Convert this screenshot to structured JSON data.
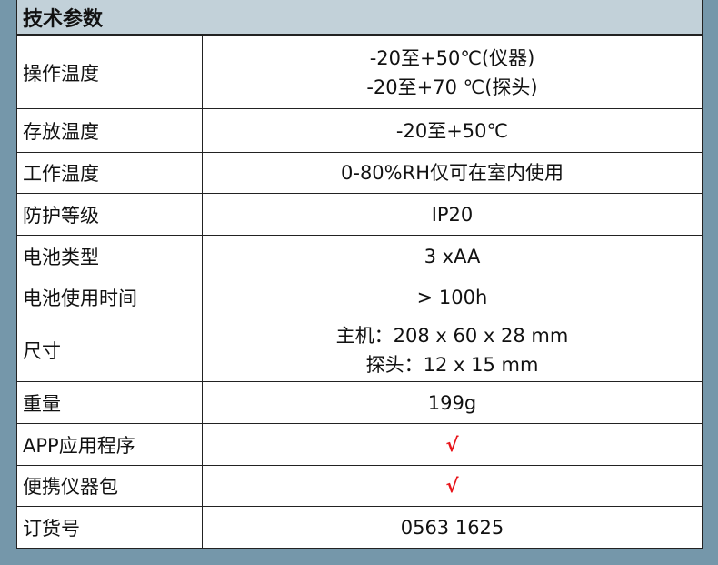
{
  "title": "技术参数",
  "check_color": "#e8141a",
  "rows": [
    {
      "label": "操作温度",
      "lines": [
        "-20至+50℃(仪器)",
        "-20至+70 ℃(探头)"
      ],
      "h": 80
    },
    {
      "label": "存放温度",
      "lines": [
        "-20至+50℃"
      ],
      "h": 48
    },
    {
      "label": "工作温度",
      "lines": [
        "0-80%RH仅可在室内使用"
      ],
      "h": 45
    },
    {
      "label": "防护等级",
      "lines": [
        "IP20"
      ],
      "h": 46
    },
    {
      "label": "电池类型",
      "lines": [
        "3 xAA"
      ],
      "h": 46
    },
    {
      "label": "电池使用时间",
      "lines": [
        "> 100h"
      ],
      "h": 45
    },
    {
      "label": "尺寸",
      "lines": [
        "主机：208 x 60 x 28 mm",
        "探头：12 x 15 mm"
      ],
      "h": 70
    },
    {
      "label": "重量",
      "lines": [
        "199g"
      ],
      "h": 46
    },
    {
      "label": "APP应用程序",
      "lines": [
        "√"
      ],
      "check": true,
      "h": 46
    },
    {
      "label": "便携仪器包",
      "lines": [
        "√"
      ],
      "check": true,
      "h": 45
    },
    {
      "label": "订货号",
      "lines": [
        "0563 1625"
      ],
      "h": 46
    }
  ]
}
